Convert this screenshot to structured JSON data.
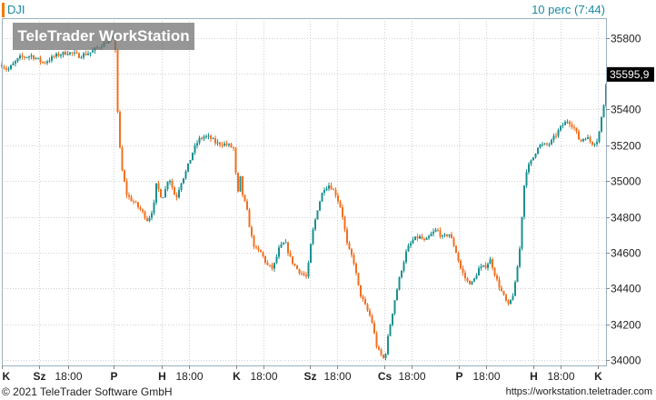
{
  "header": {
    "symbol": "DJI",
    "interval_label": "10 perc (7:44)",
    "watermark": "TeleTrader WorkStation"
  },
  "footer": {
    "copyright": "© 2021 TeleTrader Software GmbH",
    "url": "https://workstation.teletrader.com"
  },
  "colors": {
    "up": "#1a9090",
    "down": "#f07020",
    "grid": "#d0d0d0",
    "axis_text": "#222222",
    "price_tag_bg": "#000000",
    "price_tag_text": "#ffffff"
  },
  "chart_data": {
    "type": "candlestick",
    "y_ticks": [
      35800,
      35600,
      35400,
      35200,
      35000,
      34800,
      34600,
      34400,
      34200,
      34000
    ],
    "y_tick_labels": [
      "35800",
      "35600",
      "35400",
      "35200",
      "35000",
      "34800",
      "34600",
      "34400",
      "34200",
      "34000"
    ],
    "ylim": [
      33970,
      35910
    ],
    "last_price": 35595.9,
    "last_price_label": "35595,9",
    "x_ticks": [
      {
        "label": "K",
        "pos": 0.0
      },
      {
        "label": "Sz",
        "pos": 0.063
      },
      {
        "label": "18:00",
        "pos": 0.111
      },
      {
        "label": "P",
        "pos": 0.188
      },
      {
        "label": "H",
        "pos": 0.268
      },
      {
        "label": "18:00",
        "pos": 0.314
      },
      {
        "label": "K",
        "pos": 0.393
      },
      {
        "label": "18:00",
        "pos": 0.439
      },
      {
        "label": "Sz",
        "pos": 0.517
      },
      {
        "label": "18:00",
        "pos": 0.562
      },
      {
        "label": "Cs",
        "pos": 0.642
      },
      {
        "label": "18:00",
        "pos": 0.688
      },
      {
        "label": "P",
        "pos": 0.767
      },
      {
        "label": "18:00",
        "pos": 0.813
      },
      {
        "label": "H",
        "pos": 0.892
      },
      {
        "label": "18:00",
        "pos": 0.938
      },
      {
        "label": "K",
        "pos": 1.0
      }
    ],
    "path": [
      [
        0.0,
        35650
      ],
      [
        0.01,
        35620
      ],
      [
        0.03,
        35690
      ],
      [
        0.05,
        35700
      ],
      [
        0.07,
        35660
      ],
      [
        0.09,
        35700
      ],
      [
        0.11,
        35720
      ],
      [
        0.13,
        35700
      ],
      [
        0.15,
        35720
      ],
      [
        0.18,
        35790
      ],
      [
        0.19,
        35790
      ],
      [
        0.195,
        35330
      ],
      [
        0.2,
        35090
      ],
      [
        0.21,
        34920
      ],
      [
        0.225,
        34870
      ],
      [
        0.235,
        34830
      ],
      [
        0.245,
        34780
      ],
      [
        0.255,
        34860
      ],
      [
        0.26,
        35000
      ],
      [
        0.265,
        34920
      ],
      [
        0.272,
        34920
      ],
      [
        0.28,
        35030
      ],
      [
        0.292,
        34900
      ],
      [
        0.3,
        34990
      ],
      [
        0.31,
        35060
      ],
      [
        0.32,
        35160
      ],
      [
        0.33,
        35230
      ],
      [
        0.34,
        35250
      ],
      [
        0.35,
        35240
      ],
      [
        0.36,
        35210
      ],
      [
        0.37,
        35210
      ],
      [
        0.38,
        35200
      ],
      [
        0.39,
        35180
      ],
      [
        0.395,
        34900
      ],
      [
        0.4,
        35020
      ],
      [
        0.405,
        34900
      ],
      [
        0.41,
        34860
      ],
      [
        0.418,
        34700
      ],
      [
        0.425,
        34620
      ],
      [
        0.435,
        34600
      ],
      [
        0.445,
        34530
      ],
      [
        0.455,
        34510
      ],
      [
        0.465,
        34620
      ],
      [
        0.475,
        34660
      ],
      [
        0.485,
        34560
      ],
      [
        0.495,
        34510
      ],
      [
        0.505,
        34480
      ],
      [
        0.512,
        34460
      ],
      [
        0.52,
        34690
      ],
      [
        0.53,
        34850
      ],
      [
        0.54,
        34960
      ],
      [
        0.55,
        34980
      ],
      [
        0.56,
        34930
      ],
      [
        0.57,
        34840
      ],
      [
        0.58,
        34630
      ],
      [
        0.59,
        34560
      ],
      [
        0.6,
        34380
      ],
      [
        0.61,
        34300
      ],
      [
        0.62,
        34230
      ],
      [
        0.63,
        34060
      ],
      [
        0.642,
        34000
      ],
      [
        0.65,
        34170
      ],
      [
        0.66,
        34350
      ],
      [
        0.67,
        34500
      ],
      [
        0.68,
        34620
      ],
      [
        0.69,
        34670
      ],
      [
        0.7,
        34690
      ],
      [
        0.71,
        34660
      ],
      [
        0.72,
        34700
      ],
      [
        0.73,
        34730
      ],
      [
        0.74,
        34680
      ],
      [
        0.75,
        34710
      ],
      [
        0.76,
        34630
      ],
      [
        0.77,
        34510
      ],
      [
        0.78,
        34440
      ],
      [
        0.79,
        34430
      ],
      [
        0.8,
        34510
      ],
      [
        0.81,
        34520
      ],
      [
        0.82,
        34560
      ],
      [
        0.83,
        34450
      ],
      [
        0.84,
        34370
      ],
      [
        0.85,
        34300
      ],
      [
        0.86,
        34390
      ],
      [
        0.87,
        34650
      ],
      [
        0.875,
        34940
      ],
      [
        0.88,
        35060
      ],
      [
        0.89,
        35120
      ],
      [
        0.9,
        35200
      ],
      [
        0.91,
        35200
      ],
      [
        0.92,
        35210
      ],
      [
        0.93,
        35260
      ],
      [
        0.94,
        35310
      ],
      [
        0.95,
        35340
      ],
      [
        0.96,
        35300
      ],
      [
        0.97,
        35220
      ],
      [
        0.98,
        35250
      ],
      [
        0.99,
        35210
      ],
      [
        1.0,
        35230
      ],
      [
        1.01,
        35430
      ],
      [
        1.015,
        35595.9
      ]
    ]
  }
}
